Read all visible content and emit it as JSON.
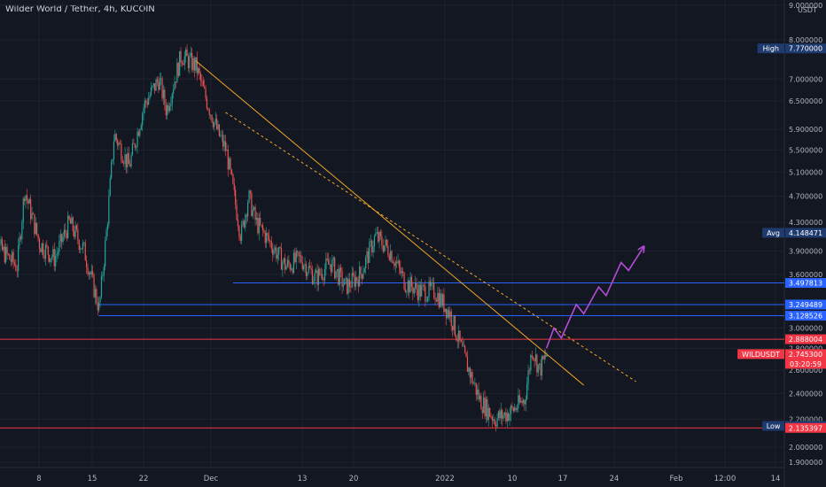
{
  "header": {
    "symbol_title": "Wilder World / Tether, 4h, KUCOIN",
    "currency": "USDT"
  },
  "colors": {
    "background": "#131722",
    "grid": "#1e222d",
    "up": "#26a69a",
    "down": "#ef5350",
    "trend_line": "#f5a623",
    "projection": "#b44cd8",
    "support_blue": "#2962ff",
    "resistance_red": "#f23645",
    "axis_text": "#b2b5be"
  },
  "chart_data": {
    "type": "candlestick",
    "title": "Wilder World / Tether, 4h, KUCOIN",
    "y_scale": "log",
    "ylim": [
      1.9,
      9.0
    ],
    "grid": true,
    "y_ticks": [
      "9.000000",
      "8.000000",
      "7.000000",
      "6.500000",
      "5.900000",
      "5.500000",
      "5.100000",
      "4.700000",
      "4.300000",
      "3.900000",
      "3.600000",
      "3.000000",
      "2.800000",
      "2.600000",
      "2.400000",
      "2.200000",
      "2.000000",
      "1.900000"
    ],
    "x_ticks": [
      "8",
      "15",
      "22",
      "Dec",
      "13",
      "20",
      "2022",
      "10",
      "17",
      "24",
      "Feb",
      "12:00",
      "14"
    ],
    "price_path": [
      {
        "x": "Nov 1",
        "y": 4.2
      },
      {
        "x": "Nov 3",
        "y": 3.9
      },
      {
        "x": "Nov 5",
        "y": 3.7
      },
      {
        "x": "Nov 6",
        "y": 4.8
      },
      {
        "x": "Nov 8",
        "y": 4.0
      },
      {
        "x": "Nov 10",
        "y": 3.8
      },
      {
        "x": "Nov 12",
        "y": 4.3
      },
      {
        "x": "Nov 14",
        "y": 3.9
      },
      {
        "x": "Nov 16",
        "y": 3.2
      },
      {
        "x": "Nov 17",
        "y": 4.2
      },
      {
        "x": "Nov 18",
        "y": 5.8
      },
      {
        "x": "Nov 20",
        "y": 5.2
      },
      {
        "x": "Nov 22",
        "y": 6.4
      },
      {
        "x": "Nov 24",
        "y": 7.0
      },
      {
        "x": "Nov 25",
        "y": 6.3
      },
      {
        "x": "Nov 27",
        "y": 7.6
      },
      {
        "x": "Nov 29",
        "y": 7.3
      },
      {
        "x": "Nov 30",
        "y": 6.7
      },
      {
        "x": "Dec 2",
        "y": 5.8
      },
      {
        "x": "Dec 3",
        "y": 5.5
      },
      {
        "x": "Dec 5",
        "y": 4.1
      },
      {
        "x": "Dec 6",
        "y": 4.7
      },
      {
        "x": "Dec 7",
        "y": 4.3
      },
      {
        "x": "Dec 9",
        "y": 4.0
      },
      {
        "x": "Dec 11",
        "y": 3.7
      },
      {
        "x": "Dec 13",
        "y": 3.8
      },
      {
        "x": "Dec 15",
        "y": 3.55
      },
      {
        "x": "Dec 17",
        "y": 3.75
      },
      {
        "x": "Dec 19",
        "y": 3.45
      },
      {
        "x": "Dec 21",
        "y": 3.6
      },
      {
        "x": "Dec 23",
        "y": 4.1
      },
      {
        "x": "Dec 25",
        "y": 3.9
      },
      {
        "x": "Dec 27",
        "y": 3.5
      },
      {
        "x": "Dec 29",
        "y": 3.4
      },
      {
        "x": "Dec 31",
        "y": 3.4
      },
      {
        "x": "Jan 2",
        "y": 3.15
      },
      {
        "x": "Jan 4",
        "y": 2.7
      },
      {
        "x": "Jan 6",
        "y": 2.35
      },
      {
        "x": "Jan 8",
        "y": 2.2
      },
      {
        "x": "Jan 10",
        "y": 2.25
      },
      {
        "x": "Jan 12",
        "y": 2.35
      },
      {
        "x": "Jan 13",
        "y": 2.8
      },
      {
        "x": "Jan 14",
        "y": 2.6
      },
      {
        "x": "Jan 15",
        "y": 2.75
      }
    ],
    "price_labels": [
      {
        "label": "High",
        "value": "7.770000",
        "style": "dark"
      },
      {
        "label": "Avg",
        "value": "4.148471",
        "style": "dark"
      },
      {
        "label": "",
        "value": "3.497813",
        "style": "blue"
      },
      {
        "label": "",
        "value": "3.249489",
        "style": "blue"
      },
      {
        "label": "",
        "value": "3.128526",
        "style": "blue"
      },
      {
        "label": "",
        "value": "2.888004",
        "style": "red"
      },
      {
        "label": "WILDUSDT",
        "value": "2.745300",
        "countdown": "03:20:59",
        "style": "red"
      },
      {
        "label": "Low",
        "value": "2.150100",
        "style": "dark"
      },
      {
        "label": "",
        "value": "2.135397",
        "style": "red"
      }
    ],
    "horizontal_levels": [
      {
        "price": 3.497813,
        "color": "support_blue",
        "from": "Dec 4"
      },
      {
        "price": 3.249489,
        "color": "support_blue",
        "from": "Nov 16"
      },
      {
        "price": 3.128526,
        "color": "support_blue",
        "from": "Nov 16"
      },
      {
        "price": 2.888004,
        "color": "resistance_red",
        "from": "Nov 1"
      },
      {
        "price": 2.135397,
        "color": "resistance_red",
        "from": "Nov 1"
      }
    ],
    "trend_lines": [
      {
        "from": {
          "x": "Nov 29",
          "y": 7.45
        },
        "to": {
          "x": "Jan 20",
          "y": 2.47
        },
        "style": "solid"
      },
      {
        "from": {
          "x": "Dec 3",
          "y": 6.25
        },
        "to": {
          "x": "Jan 27",
          "y": 2.5
        },
        "style": "dashed"
      }
    ],
    "projection_path": [
      {
        "x": "Jan 15",
        "y": 2.8
      },
      {
        "x": "Jan 16",
        "y": 3.0
      },
      {
        "x": "Jan 17",
        "y": 2.9
      },
      {
        "x": "Jan 19",
        "y": 3.25
      },
      {
        "x": "Jan 20",
        "y": 3.15
      },
      {
        "x": "Jan 22",
        "y": 3.45
      },
      {
        "x": "Jan 23",
        "y": 3.35
      },
      {
        "x": "Jan 25",
        "y": 3.75
      },
      {
        "x": "Jan 26",
        "y": 3.65
      },
      {
        "x": "Jan 28",
        "y": 3.95
      }
    ]
  }
}
